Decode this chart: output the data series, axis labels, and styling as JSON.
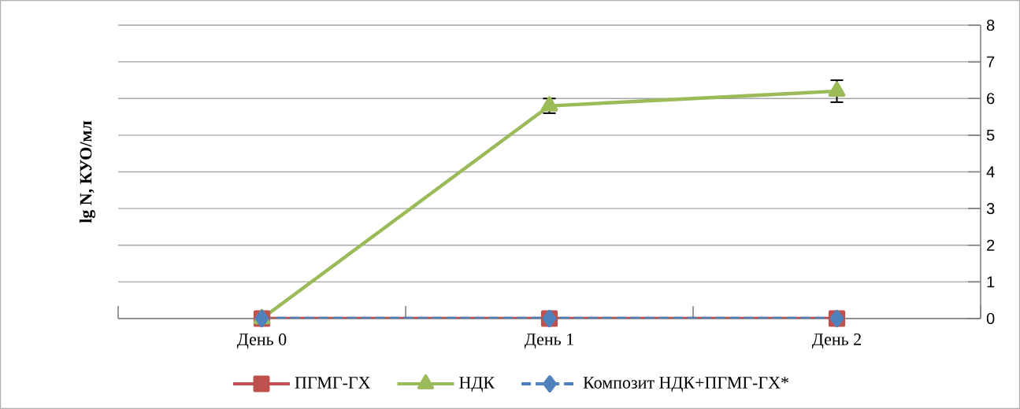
{
  "chart_data": {
    "type": "line",
    "ylabel": "lg N, КУО/мл",
    "categories": [
      "День 0",
      "День 1",
      "День 2"
    ],
    "series": [
      {
        "name": "ПГМГ-ГХ",
        "color": "#c0504d",
        "values": [
          0,
          0,
          0
        ],
        "marker": "square",
        "line_style": "solid"
      },
      {
        "name": "НДК",
        "color": "#9bbb59",
        "values": [
          0,
          5.8,
          6.2
        ],
        "errors": [
          null,
          0.2,
          0.3
        ],
        "marker": "triangle",
        "line_style": "solid"
      },
      {
        "name": "Композит НДК+ПГМГ-ГХ*",
        "color": "#4f81bd",
        "values": [
          0,
          0,
          0
        ],
        "marker": "diamond",
        "line_style": "dashed"
      }
    ],
    "ylim": [
      0,
      8
    ],
    "yticks": [
      0,
      1,
      2,
      3,
      4,
      5,
      6,
      7,
      8
    ],
    "grid": "y",
    "legend": "bottom"
  }
}
